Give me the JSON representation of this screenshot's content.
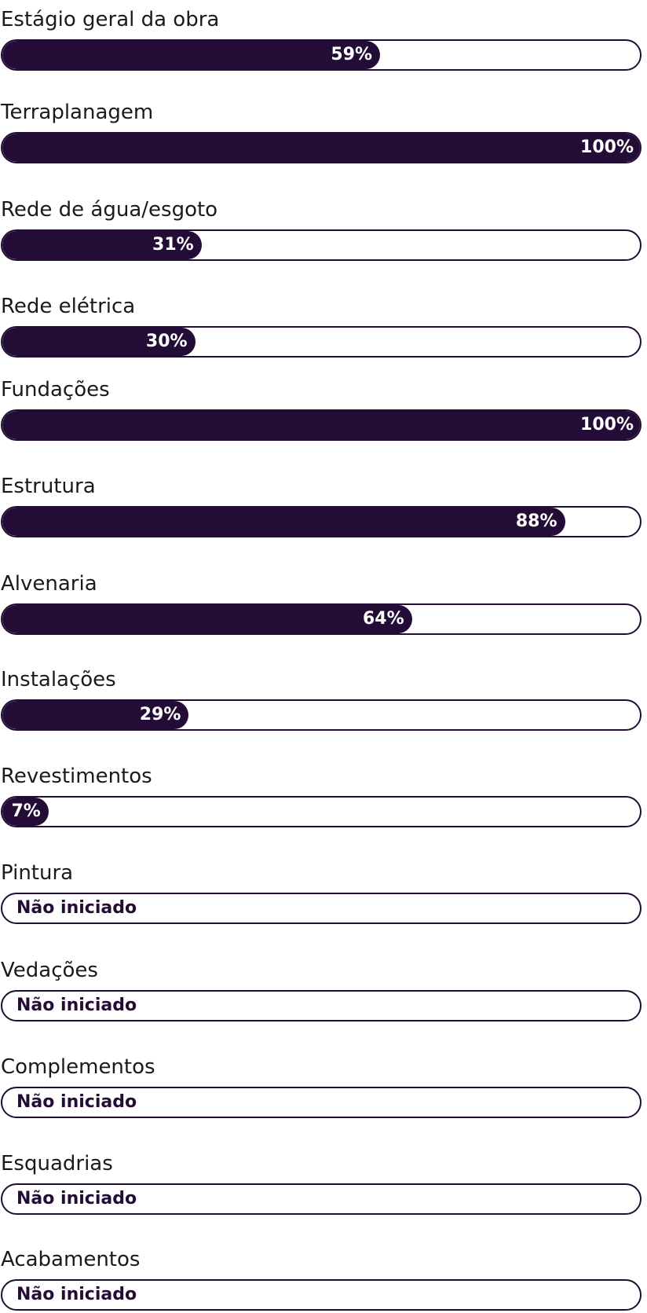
{
  "items": [
    {
      "label": "Estágio geral da obra",
      "value": 59,
      "value_label": "59%"
    },
    {
      "label": "Terraplanagem",
      "value": 100,
      "value_label": "100%"
    },
    {
      "label": "Rede de água/esgoto",
      "value": 31,
      "value_label": "31%"
    },
    {
      "label": "Rede elétrica",
      "value": 30,
      "value_label": "30%"
    },
    {
      "label": "Fundações",
      "value": 100,
      "value_label": "100%"
    },
    {
      "label": "Estrutura",
      "value": 88,
      "value_label": "88%"
    },
    {
      "label": "Alvenaria",
      "value": 64,
      "value_label": "64%"
    },
    {
      "label": "Instalações",
      "value": 29,
      "value_label": "29%"
    },
    {
      "label": "Revestimentos",
      "value": 7,
      "value_label": "7%"
    },
    {
      "label": "Pintura",
      "value": 0,
      "value_label": "Não iniciado"
    },
    {
      "label": "Vedações",
      "value": 0,
      "value_label": "Não iniciado"
    },
    {
      "label": "Complementos",
      "value": 0,
      "value_label": "Não iniciado"
    },
    {
      "label": "Esquadrias",
      "value": 0,
      "value_label": "Não iniciado"
    },
    {
      "label": "Acabamentos",
      "value": 0,
      "value_label": "Não iniciado"
    }
  ]
}
